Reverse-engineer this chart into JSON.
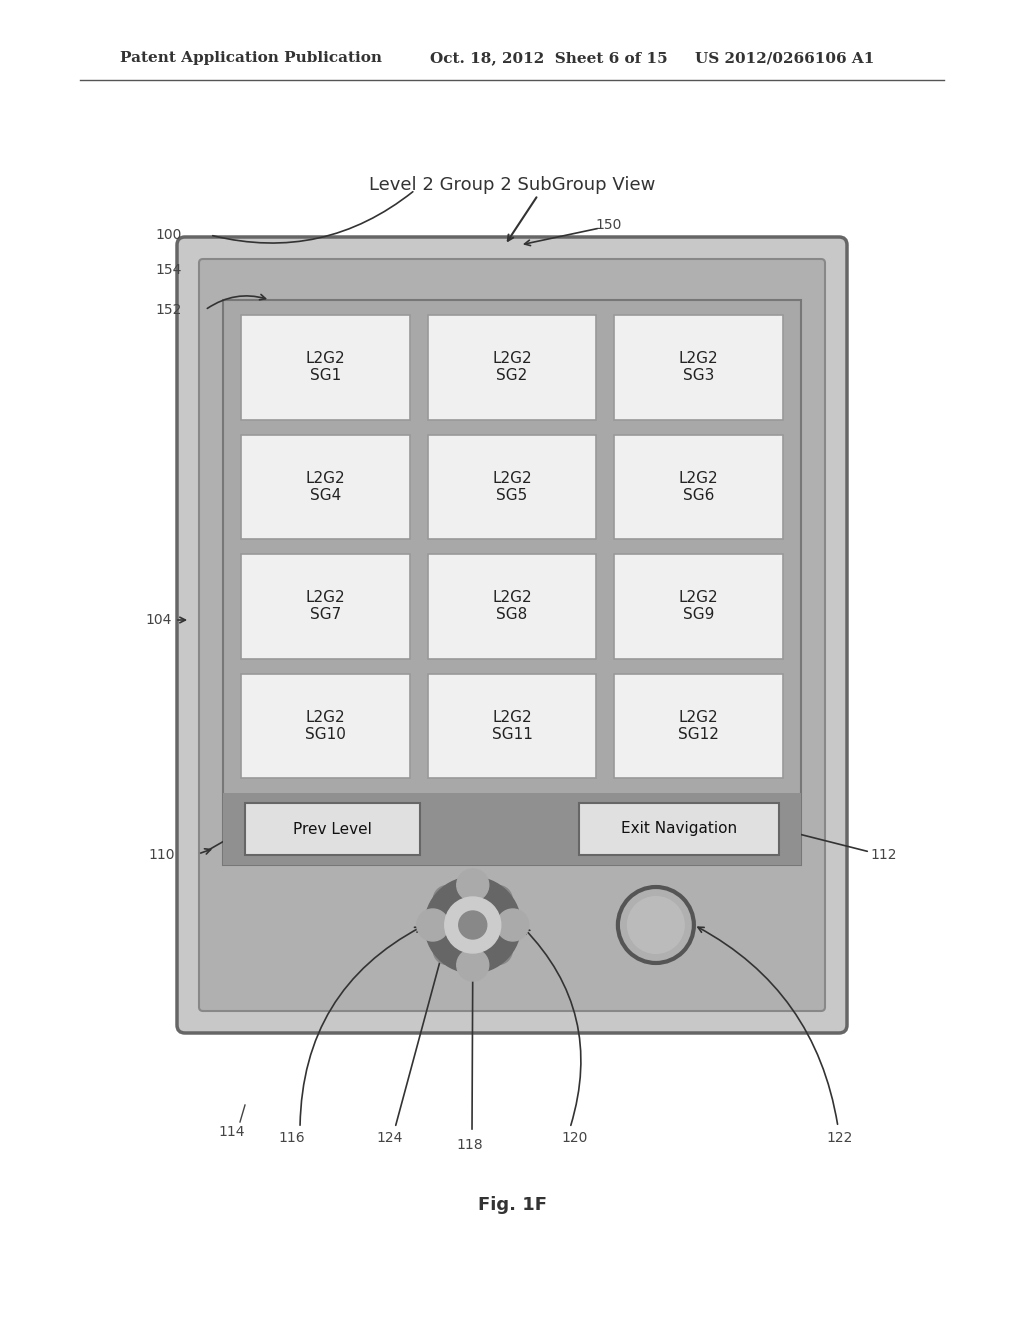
{
  "bg_color": "#ffffff",
  "header_left": "Patent Application Publication",
  "header_mid": "Oct. 18, 2012  Sheet 6 of 15",
  "header_right": "US 2012/0266106 A1",
  "title_label": "Level 2 Group 2 SubGroup View",
  "fig_label": "Fig. 1F",
  "grid_cells": [
    [
      "L2G2\nSG1",
      "L2G2\nSG2",
      "L2G2\nSG3"
    ],
    [
      "L2G2\nSG4",
      "L2G2\nSG5",
      "L2G2\nSG6"
    ],
    [
      "L2G2\nSG7",
      "L2G2\nSG8",
      "L2G2\nSG9"
    ],
    [
      "L2G2\nSG10",
      "L2G2\nSG11",
      "L2G2\nSG12"
    ]
  ],
  "device_color": "#c8c8c8",
  "device_inner_color": "#b0b0b0",
  "screen_color": "#a8a8a8",
  "cell_color": "#f0f0f0",
  "btn_bar_color": "#909090",
  "btn_color": "#e0e0e0",
  "text_color": "#333333",
  "label_color": "#444444"
}
